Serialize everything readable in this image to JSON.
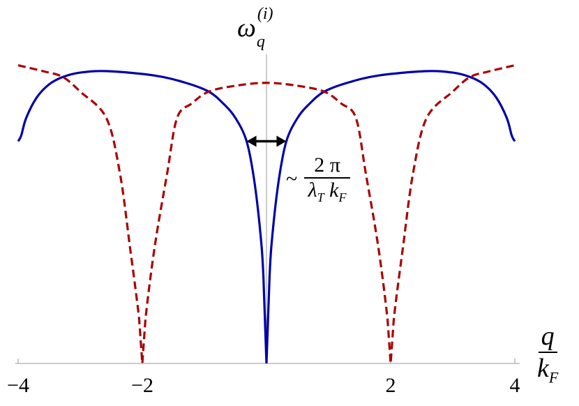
{
  "chart_data": {
    "type": "line",
    "title": "",
    "xlabel": {
      "num": "q",
      "den": "k",
      "den_sub": "F"
    },
    "ylabel": {
      "base": "ω",
      "sub": "q",
      "sup": "(i)"
    },
    "xlim": [
      -4,
      4
    ],
    "ylim": [
      0,
      1.1
    ],
    "xticks": [
      -4,
      -2,
      2,
      4
    ],
    "xtick_labels": [
      "−4",
      "−2",
      "2",
      "4"
    ],
    "grid": false,
    "legend": "none",
    "colors": {
      "solid": "#0000aa",
      "dashed": "#aa0000",
      "axis": "#999999",
      "arrow": "#000000"
    },
    "series": [
      {
        "style": "solid",
        "color": "#0000aa",
        "x": [
          0,
          0.05,
          0.1,
          0.2,
          0.32,
          0.5,
          0.7,
          0.93,
          1.3,
          1.8,
          2.56,
          3.0,
          3.28,
          3.5,
          3.7,
          3.87,
          3.95,
          4.0
        ],
        "y": [
          0,
          0.3,
          0.45,
          0.63,
          0.76,
          0.84,
          0.89,
          0.93,
          0.96,
          0.985,
          1.0,
          0.995,
          0.98,
          0.955,
          0.91,
          0.84,
          0.78,
          0.76
        ],
        "symmetric": true
      },
      {
        "style": "dashed",
        "color": "#aa0000",
        "x": [
          0,
          0.5,
          0.93,
          1.2,
          1.44,
          1.6,
          1.8,
          1.95,
          2.0,
          2.05,
          2.2,
          2.36,
          2.58,
          3.0,
          3.28,
          3.6,
          4.0
        ],
        "y": [
          0.96,
          0.95,
          0.93,
          0.89,
          0.84,
          0.65,
          0.4,
          0.15,
          0,
          0.15,
          0.4,
          0.65,
          0.84,
          0.93,
          0.98,
          1.0,
          1.02
        ],
        "symmetric": true
      }
    ],
    "annotation": {
      "arrow": {
        "x": [
          -0.32,
          0.32
        ],
        "y": 0.76
      },
      "prefix": "~",
      "num": "2 π",
      "den_a": "λ",
      "den_a_sub": "T",
      "den_b": "k",
      "den_b_sub": "F"
    }
  }
}
